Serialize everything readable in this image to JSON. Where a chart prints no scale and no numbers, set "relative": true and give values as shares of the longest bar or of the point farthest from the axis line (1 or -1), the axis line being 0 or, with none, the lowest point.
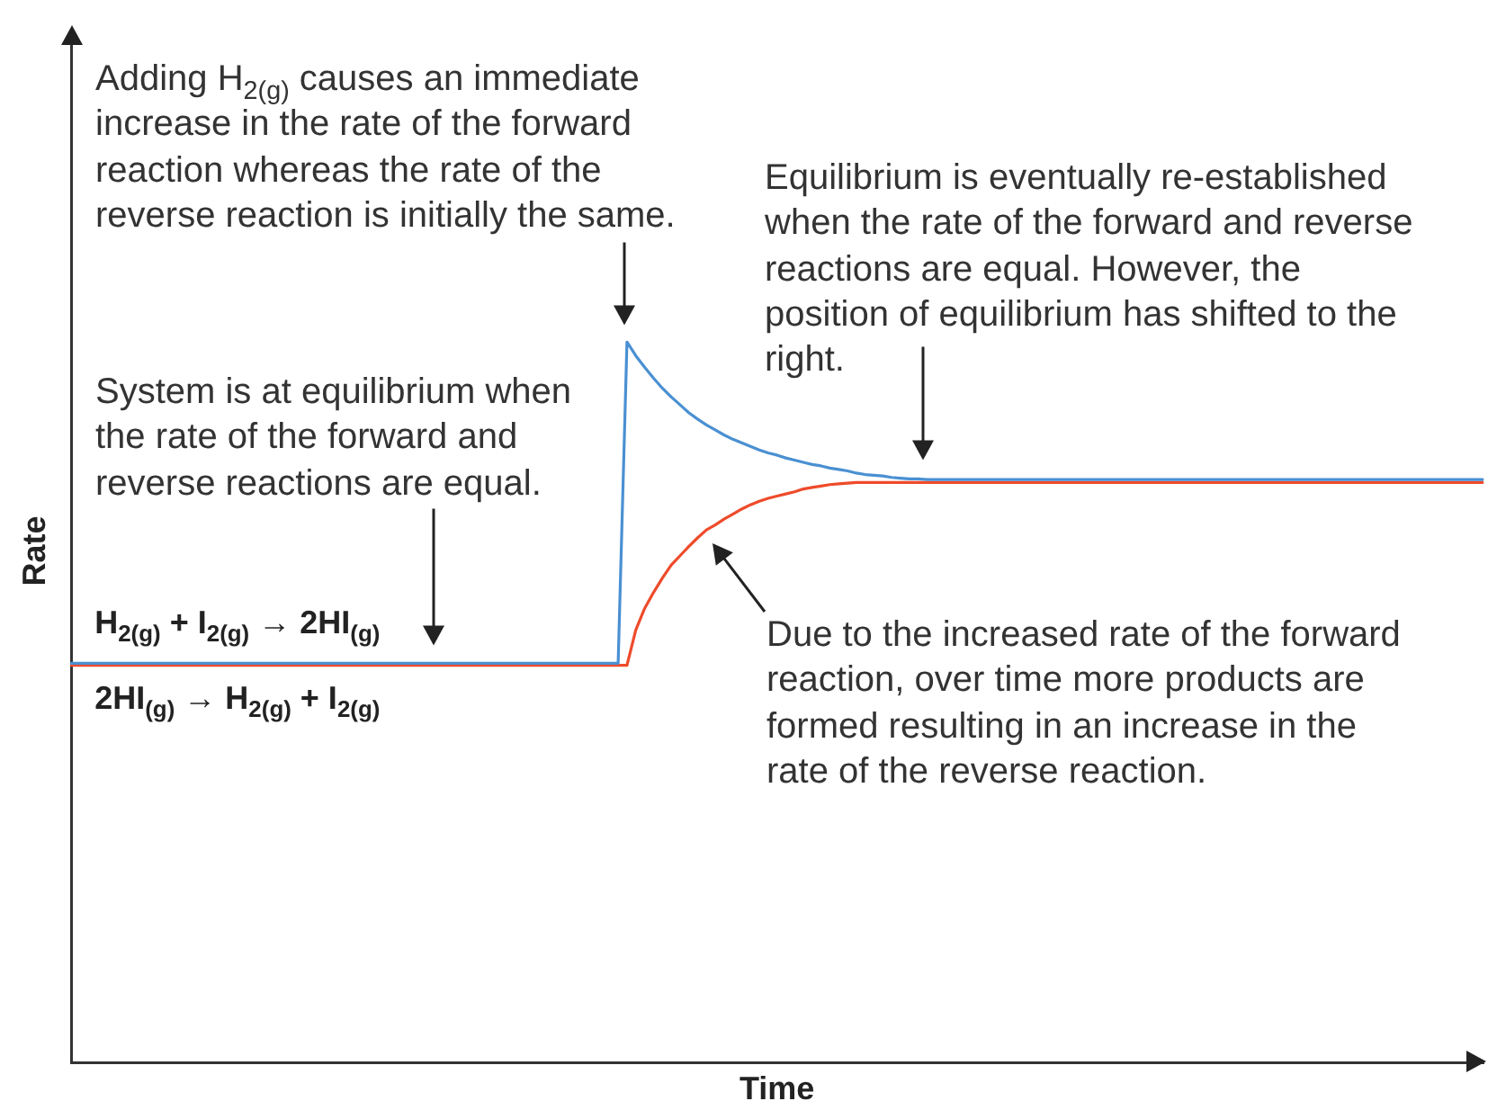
{
  "chart_data": {
    "type": "line",
    "relative": true,
    "xlabel": "Time",
    "ylabel": "Rate",
    "categories": [
      null,
      null,
      null,
      null,
      null,
      null,
      null,
      null,
      null,
      null,
      null,
      null,
      null,
      null,
      null,
      null,
      null,
      null,
      null,
      null,
      null,
      null,
      null,
      null,
      null,
      null,
      null,
      null,
      null,
      null,
      null,
      null,
      null,
      null,
      null,
      null,
      null,
      null,
      null,
      null,
      null,
      null,
      null,
      null,
      null,
      null,
      null,
      null,
      null,
      null,
      null,
      null,
      null,
      null,
      null,
      null,
      null,
      null,
      null,
      null,
      null,
      null,
      null,
      null,
      null,
      null,
      null,
      null,
      null,
      null,
      null,
      null,
      null,
      null,
      null,
      null,
      null,
      null,
      null,
      null,
      null,
      null,
      null,
      null,
      null,
      null,
      null,
      null,
      null,
      null,
      null,
      null,
      null,
      null,
      null,
      null,
      null,
      null,
      null,
      null,
      null,
      null,
      null,
      null,
      null,
      null,
      null,
      null,
      null,
      null,
      null,
      null,
      null,
      null,
      null,
      null,
      null,
      null,
      null,
      null,
      null,
      null,
      null,
      null,
      null,
      null,
      null,
      null,
      null,
      null,
      null,
      null,
      null,
      null,
      null,
      null,
      null,
      null,
      null,
      null,
      null,
      null,
      null,
      null,
      null,
      null,
      null,
      null,
      null,
      null,
      null,
      null,
      null,
      null,
      null,
      null,
      null,
      null,
      null,
      null,
      null
    ],
    "series": [
      {
        "name": "H$_{2(g)}$ + I$_{2(g)}$ → 2HI$_{(g)}$",
        "color": "#4a90d2",
        "values": [
          0.554,
          0.554,
          0.554,
          0.554,
          0.554,
          0.554,
          0.554,
          0.554,
          0.554,
          0.554,
          0.554,
          0.554,
          0.554,
          0.554,
          0.554,
          0.554,
          0.554,
          0.554,
          0.554,
          0.554,
          0.554,
          0.554,
          0.554,
          0.554,
          0.554,
          0.554,
          0.554,
          0.554,
          0.554,
          0.554,
          0.554,
          0.554,
          0.554,
          0.554,
          0.554,
          0.554,
          0.554,
          0.554,
          0.554,
          0.554,
          0.554,
          0.554,
          0.554,
          0.554,
          0.554,
          0.554,
          0.554,
          0.554,
          0.554,
          0.554,
          0.554,
          0.554,
          0.554,
          0.554,
          0.554,
          0.554,
          0.554,
          0.554,
          0.554,
          0.554,
          0.554,
          0.554,
          0.554,
          1.0,
          0.981,
          0.965,
          0.95,
          0.936,
          0.924,
          0.913,
          0.902,
          0.893,
          0.885,
          0.878,
          0.871,
          0.865,
          0.86,
          0.855,
          0.85,
          0.846,
          0.843,
          0.839,
          0.836,
          0.833,
          0.83,
          0.828,
          0.825,
          0.823,
          0.821,
          0.818,
          0.816,
          0.815,
          0.814,
          0.812,
          0.811,
          0.81,
          0.81,
          0.809,
          0.809,
          0.809,
          0.809,
          0.809,
          0.809,
          0.809,
          0.809,
          0.809,
          0.809,
          0.809,
          0.809,
          0.809,
          0.809,
          0.809,
          0.809,
          0.809,
          0.809,
          0.809,
          0.809,
          0.809,
          0.809,
          0.809,
          0.809,
          0.809,
          0.809,
          0.809,
          0.809,
          0.809,
          0.809,
          0.809,
          0.809,
          0.809,
          0.809,
          0.809,
          0.809,
          0.809,
          0.809,
          0.809,
          0.809,
          0.809,
          0.809,
          0.809,
          0.809,
          0.809,
          0.809,
          0.809,
          0.809,
          0.809,
          0.809,
          0.809,
          0.809,
          0.809,
          0.809,
          0.809,
          0.809,
          0.809,
          0.809,
          0.809,
          0.809,
          0.809,
          0.809,
          0.809,
          0.809
        ]
      },
      {
        "name": "2HI$_{(g)}$ → H$_{2(g)}$ + I$_{2(g)}$",
        "color": "#ee4b2b",
        "values": [
          0.551,
          0.551,
          0.551,
          0.551,
          0.551,
          0.551,
          0.551,
          0.551,
          0.551,
          0.551,
          0.551,
          0.551,
          0.551,
          0.551,
          0.551,
          0.551,
          0.551,
          0.551,
          0.551,
          0.551,
          0.551,
          0.551,
          0.551,
          0.551,
          0.551,
          0.551,
          0.551,
          0.551,
          0.551,
          0.551,
          0.551,
          0.551,
          0.551,
          0.551,
          0.551,
          0.551,
          0.551,
          0.551,
          0.551,
          0.551,
          0.551,
          0.551,
          0.551,
          0.551,
          0.551,
          0.551,
          0.551,
          0.551,
          0.551,
          0.551,
          0.551,
          0.551,
          0.551,
          0.551,
          0.551,
          0.551,
          0.551,
          0.551,
          0.551,
          0.551,
          0.551,
          0.551,
          0.551,
          0.551,
          0.6,
          0.63,
          0.652,
          0.672,
          0.69,
          0.703,
          0.716,
          0.728,
          0.739,
          0.746,
          0.754,
          0.761,
          0.768,
          0.774,
          0.779,
          0.783,
          0.786,
          0.789,
          0.792,
          0.796,
          0.798,
          0.8,
          0.802,
          0.803,
          0.804,
          0.805,
          0.805,
          0.805,
          0.805,
          0.805,
          0.805,
          0.805,
          0.805,
          0.805,
          0.805,
          0.805,
          0.805,
          0.805,
          0.805,
          0.805,
          0.805,
          0.805,
          0.805,
          0.805,
          0.805,
          0.805,
          0.805,
          0.805,
          0.805,
          0.805,
          0.805,
          0.805,
          0.805,
          0.805,
          0.805,
          0.805,
          0.805,
          0.805,
          0.805,
          0.805,
          0.805,
          0.805,
          0.805,
          0.805,
          0.805,
          0.805,
          0.805,
          0.805,
          0.805,
          0.805,
          0.805,
          0.805,
          0.805,
          0.805,
          0.805,
          0.805,
          0.805,
          0.805,
          0.805,
          0.805,
          0.805,
          0.805,
          0.805,
          0.805,
          0.805,
          0.805,
          0.805,
          0.805,
          0.805,
          0.805,
          0.805,
          0.805,
          0.805,
          0.805,
          0.805,
          0.805,
          0.805
        ]
      }
    ],
    "annotations": [
      "Adding H$_{2(g)}$ causes an immediate increase in the rate of the forward reaction whereas the rate of the reverse reaction is initially the same.",
      "System is at equilibrium when the rate of the forward and reverse reactions are equal.",
      "Equilibrium is eventually re-established when the rate of the forward and reverse reactions are equal. However, the position of equilibrium has shifted to the right.",
      "Due to the increased rate of the forward reaction, over time more products are formed resulting in an increase in the rate of the reverse reaction."
    ]
  }
}
